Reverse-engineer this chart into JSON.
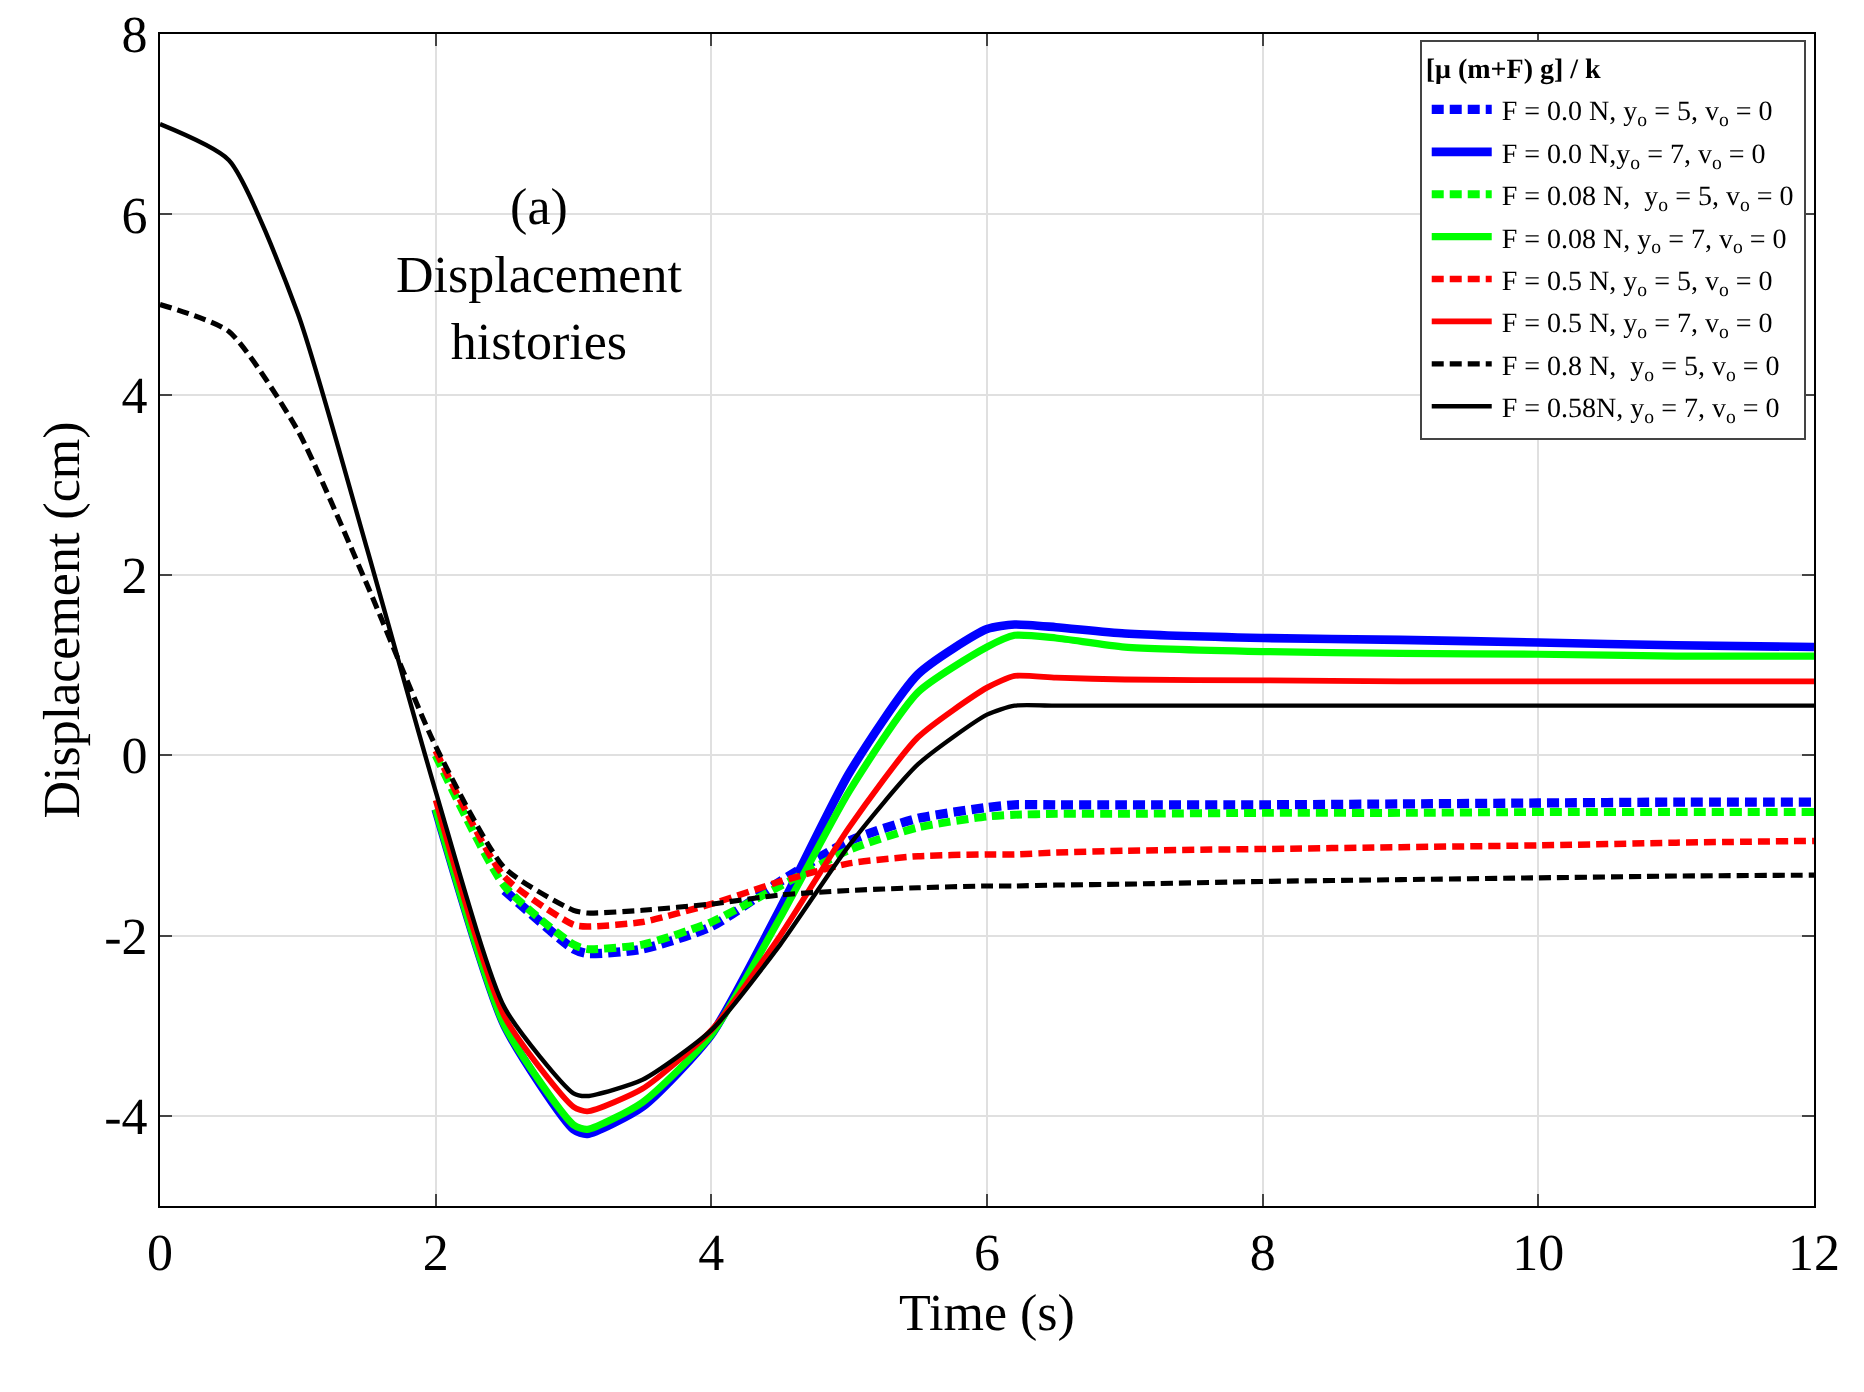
{
  "chart_data": {
    "type": "line",
    "xlabel": "Time (s)",
    "ylabel": "Displacement (cm)",
    "legend_title": "[μ (m+F) g] / k",
    "annotations": [
      "(a)\nDisplacement\nhistories"
    ],
    "x": [
      0,
      0.5,
      1,
      1.5,
      2,
      2.5,
      3,
      3.1,
      3.5,
      4,
      4.5,
      5,
      5.5,
      6,
      6.2,
      6.5,
      7,
      8,
      9,
      10,
      11,
      12
    ],
    "xlim": [
      0,
      12
    ],
    "xticks": [
      0,
      2,
      4,
      6,
      8,
      10,
      12
    ],
    "ylim": [
      -5,
      8
    ],
    "yticks": [
      -4,
      -2,
      0,
      2,
      4,
      6,
      8
    ],
    "grid": true,
    "legend": "top right",
    "marker": "none",
    "series": [
      {
        "name": "F = 0.0 N, y$_{o}$ = 5, v$_{o}$ = 0",
        "color": "#0000ff",
        "line_style": "dashed",
        "values": [
          null,
          null,
          null,
          null,
          null,
          -1.5,
          -2.15,
          -2.2,
          -2.15,
          -1.9,
          -1.4,
          -0.95,
          -0.7,
          -0.58,
          -0.55,
          -0.55,
          -0.55,
          -0.55,
          -0.54,
          -0.53,
          -0.52,
          -0.52
        ]
      },
      {
        "name": "F = 0.0 N,y$_{o}$ = 7, v$_{o}$ = 0",
        "color": "#0000ff",
        "line_style": "solid",
        "values": [
          null,
          null,
          null,
          null,
          -0.6,
          -3.0,
          -4.15,
          -4.2,
          -3.9,
          -3.1,
          -1.7,
          -0.2,
          0.9,
          1.4,
          1.45,
          1.42,
          1.35,
          1.3,
          1.28,
          1.25,
          1.22,
          1.2
        ]
      },
      {
        "name": "F = 0.08 N,  y$_{o}$ = 5, v$_{o}$ = 0",
        "color": "#00ff00",
        "line_style": "dashed",
        "values": [
          null,
          null,
          null,
          null,
          0.0,
          -1.45,
          -2.1,
          -2.15,
          -2.1,
          -1.85,
          -1.45,
          -1.05,
          -0.8,
          -0.68,
          -0.66,
          -0.65,
          -0.65,
          -0.64,
          -0.64,
          -0.63,
          -0.63,
          -0.63
        ]
      },
      {
        "name": "F = 0.08 N, y$_{o}$ = 7, v$_{o}$ = 0",
        "color": "#00ff00",
        "line_style": "solid",
        "values": [
          null,
          null,
          null,
          null,
          -0.6,
          -3.0,
          -4.1,
          -4.15,
          -3.85,
          -3.1,
          -1.8,
          -0.4,
          0.7,
          1.2,
          1.33,
          1.3,
          1.2,
          1.15,
          1.13,
          1.12,
          1.1,
          1.1
        ]
      },
      {
        "name": "F = 0.5 N, y$_{o}$ = 5, v$_{o}$ = 0",
        "color": "#ff0000",
        "line_style": "dashed",
        "values": [
          null,
          null,
          null,
          null,
          0.05,
          -1.35,
          -1.88,
          -1.9,
          -1.85,
          -1.65,
          -1.4,
          -1.2,
          -1.12,
          -1.1,
          -1.1,
          -1.08,
          -1.06,
          -1.04,
          -1.02,
          -1.0,
          -0.97,
          -0.95
        ]
      },
      {
        "name": "F = 0.5 N, y$_{o}$ = 7, v$_{o}$ = 0",
        "color": "#ff0000",
        "line_style": "solid",
        "values": [
          null,
          null,
          null,
          null,
          -0.5,
          -2.9,
          -3.9,
          -3.95,
          -3.7,
          -3.05,
          -2.0,
          -0.8,
          0.2,
          0.75,
          0.88,
          0.86,
          0.84,
          0.83,
          0.82,
          0.82,
          0.82,
          0.82
        ]
      },
      {
        "name": "F = 0.8 N,  y$_{o}$ = 5, v$_{o}$ = 0",
        "color": "#000000",
        "line_style": "dashed",
        "values": [
          5,
          4.7,
          3.6,
          1.9,
          0.1,
          -1.25,
          -1.72,
          -1.75,
          -1.72,
          -1.65,
          -1.55,
          -1.5,
          -1.47,
          -1.45,
          -1.45,
          -1.44,
          -1.43,
          -1.4,
          -1.38,
          -1.36,
          -1.34,
          -1.33
        ]
      },
      {
        "name": "F = 0.58N, y$_{o}$ = 7, v$_{o}$ = 0",
        "color": "#000000",
        "line_style": "solid",
        "values": [
          7,
          6.6,
          4.9,
          2.3,
          -0.4,
          -2.8,
          -3.75,
          -3.78,
          -3.6,
          -3.05,
          -2.1,
          -1.0,
          -0.1,
          0.45,
          0.55,
          0.55,
          0.55,
          0.55,
          0.55,
          0.55,
          0.55,
          0.55
        ]
      }
    ]
  }
}
